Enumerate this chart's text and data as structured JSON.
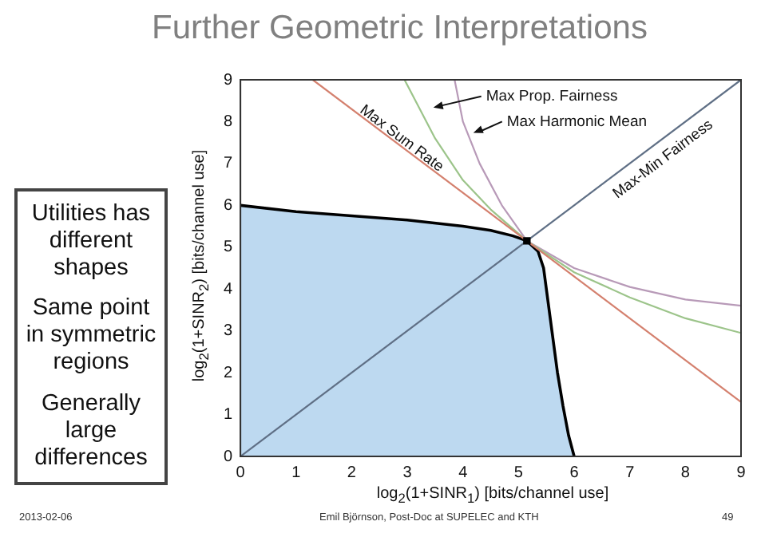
{
  "chart_data": {
    "type": "line",
    "title": "Further Geometric Interpretations",
    "xlabel": "log$_{2}$(1+SINR$_{1}$) [bits/channel use]",
    "ylabel": "log$_{2}$(1+SINR$_{2}$) [bits/channel use]",
    "xlim": [
      0,
      9
    ],
    "ylim": [
      0,
      9
    ],
    "xticks": [
      0,
      1,
      2,
      3,
      4,
      5,
      6,
      7,
      8,
      9
    ],
    "yticks": [
      0,
      1,
      2,
      3,
      4,
      5,
      6,
      7,
      8,
      9
    ],
    "grid": false,
    "legend": false,
    "series": [
      {
        "type": "area",
        "color": "#bdd9f0",
        "x": [
          0,
          1,
          2,
          3,
          4,
          4.5,
          4.9,
          5.15,
          5.35,
          5.45,
          5.5,
          5.6,
          5.7,
          5.8,
          5.9,
          6
        ],
        "values": [
          6,
          5.85,
          5.75,
          5.65,
          5.5,
          5.4,
          5.27,
          5.15,
          4.9,
          4.5,
          4,
          3,
          2,
          1.2,
          0.5,
          0
        ]
      },
      {
        "type": "line",
        "color": "#d4806e",
        "x": [
          1.3,
          9
        ],
        "values": [
          9,
          1.3
        ]
      },
      {
        "type": "line",
        "color": "#9cc48a",
        "x": [
          2.95,
          3.5,
          4,
          4.5,
          5.15,
          6,
          7,
          8,
          9
        ],
        "values": [
          9,
          7.6,
          6.6,
          5.9,
          5.15,
          4.4,
          3.8,
          3.3,
          2.95
        ]
      },
      {
        "type": "line",
        "color": "#b89ab8",
        "x": [
          3.85,
          4,
          4.3,
          4.7,
          5.15,
          6,
          7,
          8,
          9
        ],
        "values": [
          9,
          8,
          7,
          6,
          5.15,
          4.5,
          4.05,
          3.75,
          3.6
        ]
      },
      {
        "type": "line",
        "color": "#5f6f85",
        "x": [
          0,
          9
        ],
        "values": [
          0,
          9
        ]
      },
      {
        "type": "scatter",
        "color": "#000000",
        "marker": "square",
        "x": [
          5.15
        ],
        "values": [
          5.15
        ]
      }
    ],
    "annotations": [
      "Max Sum Rate",
      "Max Prop. Fairness",
      "Max Harmonic Mean",
      "Max-Min Fairness",
      "Utilities has different shapes",
      "Same point in symmetric regions",
      "Generally large differences",
      "2013-02-06",
      "Emil Björnson, Post-Doc at SUPELEC and KTH",
      "49"
    ]
  }
}
